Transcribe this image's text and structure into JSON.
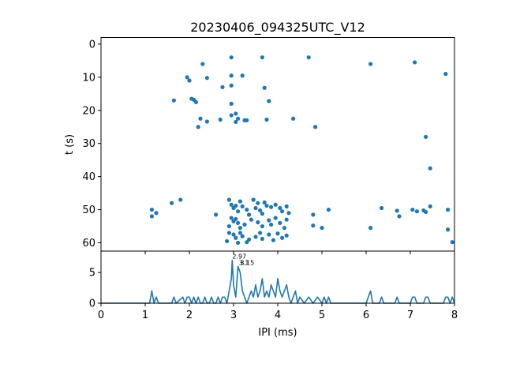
{
  "chart_data": [
    {
      "type": "scatter",
      "title": "20230406_094325UTC_V12",
      "xlabel": "",
      "ylabel": "t (s)",
      "xlim": [
        0,
        8
      ],
      "ylim": [
        62.5,
        -2
      ],
      "y_inverted": true,
      "yticks": [
        0,
        10,
        20,
        30,
        40,
        50,
        60
      ],
      "grid": false,
      "color": "#1f77b4",
      "points": [
        [
          2.95,
          4.0
        ],
        [
          3.65,
          4.0
        ],
        [
          4.7,
          4.0
        ],
        [
          2.3,
          6.0
        ],
        [
          6.1,
          6.0
        ],
        [
          7.1,
          5.5
        ],
        [
          7.8,
          9.0
        ],
        [
          2.95,
          9.5
        ],
        [
          3.2,
          9.5
        ],
        [
          1.95,
          10.0
        ],
        [
          2.0,
          11.0
        ],
        [
          2.4,
          10.2
        ],
        [
          2.75,
          13.0
        ],
        [
          2.95,
          12.5
        ],
        [
          3.7,
          13.2
        ],
        [
          1.65,
          17.0
        ],
        [
          2.05,
          16.5
        ],
        [
          2.1,
          16.8
        ],
        [
          2.15,
          17.5
        ],
        [
          3.8,
          17.2
        ],
        [
          2.95,
          18.0
        ],
        [
          2.95,
          21.5
        ],
        [
          3.05,
          21.0
        ],
        [
          3.1,
          22.5
        ],
        [
          3.25,
          23.0
        ],
        [
          3.3,
          23.0
        ],
        [
          2.25,
          22.5
        ],
        [
          2.7,
          22.8
        ],
        [
          3.05,
          23.5
        ],
        [
          3.75,
          22.8
        ],
        [
          2.4,
          23.4
        ],
        [
          4.35,
          22.5
        ],
        [
          2.2,
          25.0
        ],
        [
          4.85,
          25.0
        ],
        [
          7.35,
          28.0
        ],
        [
          7.45,
          37.5
        ],
        [
          1.8,
          47.0
        ],
        [
          1.6,
          48.0
        ],
        [
          2.9,
          47.0
        ],
        [
          3.15,
          47.5
        ],
        [
          3.45,
          47.0
        ],
        [
          3.55,
          48.0
        ],
        [
          3.7,
          47.8
        ],
        [
          1.15,
          50.0
        ],
        [
          1.25,
          51.0
        ],
        [
          1.15,
          52.0
        ],
        [
          2.6,
          51.5
        ],
        [
          2.95,
          48.5
        ],
        [
          3.05,
          48.8
        ],
        [
          3.0,
          49.5
        ],
        [
          3.1,
          50.5
        ],
        [
          3.2,
          49.0
        ],
        [
          3.3,
          50.0
        ],
        [
          3.35,
          51.5
        ],
        [
          3.5,
          49.5
        ],
        [
          3.6,
          50.2
        ],
        [
          3.65,
          51.2
        ],
        [
          3.75,
          48.8
        ],
        [
          3.85,
          49.2
        ],
        [
          3.95,
          48.5
        ],
        [
          4.05,
          49.5
        ],
        [
          4.1,
          50.5
        ],
        [
          4.2,
          49.0
        ],
        [
          4.25,
          51.0
        ],
        [
          4.8,
          51.5
        ],
        [
          5.15,
          50.0
        ],
        [
          6.35,
          49.5
        ],
        [
          6.7,
          50.3
        ],
        [
          6.75,
          52.0
        ],
        [
          7.05,
          50.0
        ],
        [
          7.15,
          50.5
        ],
        [
          7.3,
          50.2
        ],
        [
          7.35,
          50.7
        ],
        [
          7.45,
          49.0
        ],
        [
          7.85,
          50.0
        ],
        [
          2.95,
          52.5
        ],
        [
          3.0,
          53.5
        ],
        [
          3.05,
          52.8
        ],
        [
          3.1,
          54.0
        ],
        [
          2.9,
          55.0
        ],
        [
          3.15,
          55.5
        ],
        [
          3.25,
          54.5
        ],
        [
          3.4,
          53.0
        ],
        [
          3.55,
          53.8
        ],
        [
          3.65,
          55.0
        ],
        [
          3.8,
          53.2
        ],
        [
          3.85,
          54.5
        ],
        [
          3.95,
          52.5
        ],
        [
          4.05,
          54.0
        ],
        [
          4.15,
          55.5
        ],
        [
          4.2,
          53.0
        ],
        [
          4.8,
          54.8
        ],
        [
          5.0,
          55.5
        ],
        [
          6.1,
          55.5
        ],
        [
          7.85,
          56.0
        ],
        [
          2.9,
          57.0
        ],
        [
          3.0,
          57.5
        ],
        [
          3.05,
          58.5
        ],
        [
          3.15,
          57.0
        ],
        [
          3.2,
          58.0
        ],
        [
          3.35,
          59.0
        ],
        [
          3.5,
          58.2
        ],
        [
          3.6,
          57.0
        ],
        [
          3.65,
          58.8
        ],
        [
          3.8,
          57.5
        ],
        [
          3.9,
          59.2
        ],
        [
          4.0,
          57.2
        ],
        [
          4.1,
          58.5
        ],
        [
          4.2,
          57.8
        ],
        [
          2.85,
          59.5
        ],
        [
          3.1,
          60.0
        ],
        [
          3.3,
          59.8
        ],
        [
          7.95,
          59.8
        ]
      ]
    },
    {
      "type": "line",
      "xlabel": "IPI (ms)",
      "ylabel": "",
      "xlim": [
        0,
        8
      ],
      "ylim": [
        0,
        8.5
      ],
      "xticks": [
        0,
        1,
        2,
        3,
        4,
        5,
        6,
        7,
        8
      ],
      "yticks": [
        0,
        5
      ],
      "grid": false,
      "color": "#1f77b4",
      "series": [
        {
          "x": [
            0,
            1.1,
            1.15,
            1.2,
            1.25,
            1.3,
            1.6,
            1.65,
            1.7,
            1.85,
            1.9,
            1.95,
            2.0,
            2.05,
            2.1,
            2.15,
            2.2,
            2.25,
            2.3,
            2.35,
            2.4,
            2.45,
            2.5,
            2.55,
            2.6,
            2.65,
            2.7,
            2.75,
            2.8,
            2.85,
            2.9,
            2.95,
            2.97,
            3.0,
            3.05,
            3.1,
            3.15,
            3.2,
            3.25,
            3.3,
            3.35,
            3.4,
            3.45,
            3.5,
            3.55,
            3.6,
            3.65,
            3.7,
            3.75,
            3.8,
            3.85,
            3.9,
            3.95,
            4.0,
            4.05,
            4.1,
            4.15,
            4.2,
            4.25,
            4.3,
            4.35,
            4.4,
            4.45,
            4.5,
            4.6,
            4.7,
            4.8,
            4.9,
            5.0,
            5.05,
            5.1,
            5.15,
            5.2,
            6.0,
            6.05,
            6.1,
            6.15,
            6.3,
            6.35,
            6.4,
            6.65,
            6.7,
            6.75,
            7.0,
            7.05,
            7.1,
            7.15,
            7.3,
            7.35,
            7.4,
            7.45,
            7.5,
            7.75,
            7.8,
            7.85,
            7.9,
            7.95,
            8.0
          ],
          "y": [
            0,
            0,
            2.0,
            0,
            1.0,
            0,
            0,
            1.0,
            0,
            1.0,
            0,
            1.0,
            1.0,
            0,
            1.0,
            0,
            1.0,
            0,
            0,
            1.0,
            0,
            0,
            1.0,
            0,
            0,
            1.0,
            0,
            1.0,
            1.0,
            0,
            2.0,
            4.0,
            7.0,
            3.0,
            1.0,
            6.0,
            5.0,
            2.0,
            1.0,
            0,
            1.0,
            2.0,
            1.0,
            3.0,
            1.0,
            2.0,
            4.0,
            1.0,
            2.0,
            1.0,
            3.0,
            2.0,
            1.0,
            4.0,
            2.0,
            1.0,
            2.0,
            3.0,
            1.0,
            0,
            1.0,
            2.0,
            0,
            1.0,
            0,
            1.0,
            0,
            1.0,
            0,
            1.0,
            0,
            1.0,
            0,
            0,
            1.0,
            2.0,
            0,
            0,
            1.0,
            0,
            0,
            1.0,
            0,
            0,
            1.0,
            1.0,
            0,
            0,
            1.0,
            1.0,
            0,
            0,
            0,
            1.0,
            1.0,
            0,
            1.0,
            0
          ]
        }
      ],
      "annotations": [
        {
          "x": 2.97,
          "y": 7.0,
          "text": "2.97"
        },
        {
          "x": 3.15,
          "y": 6.0,
          "text": "3.15"
        },
        {
          "x": 3.12,
          "y": 6.0,
          "text": "3.1"
        }
      ]
    }
  ]
}
